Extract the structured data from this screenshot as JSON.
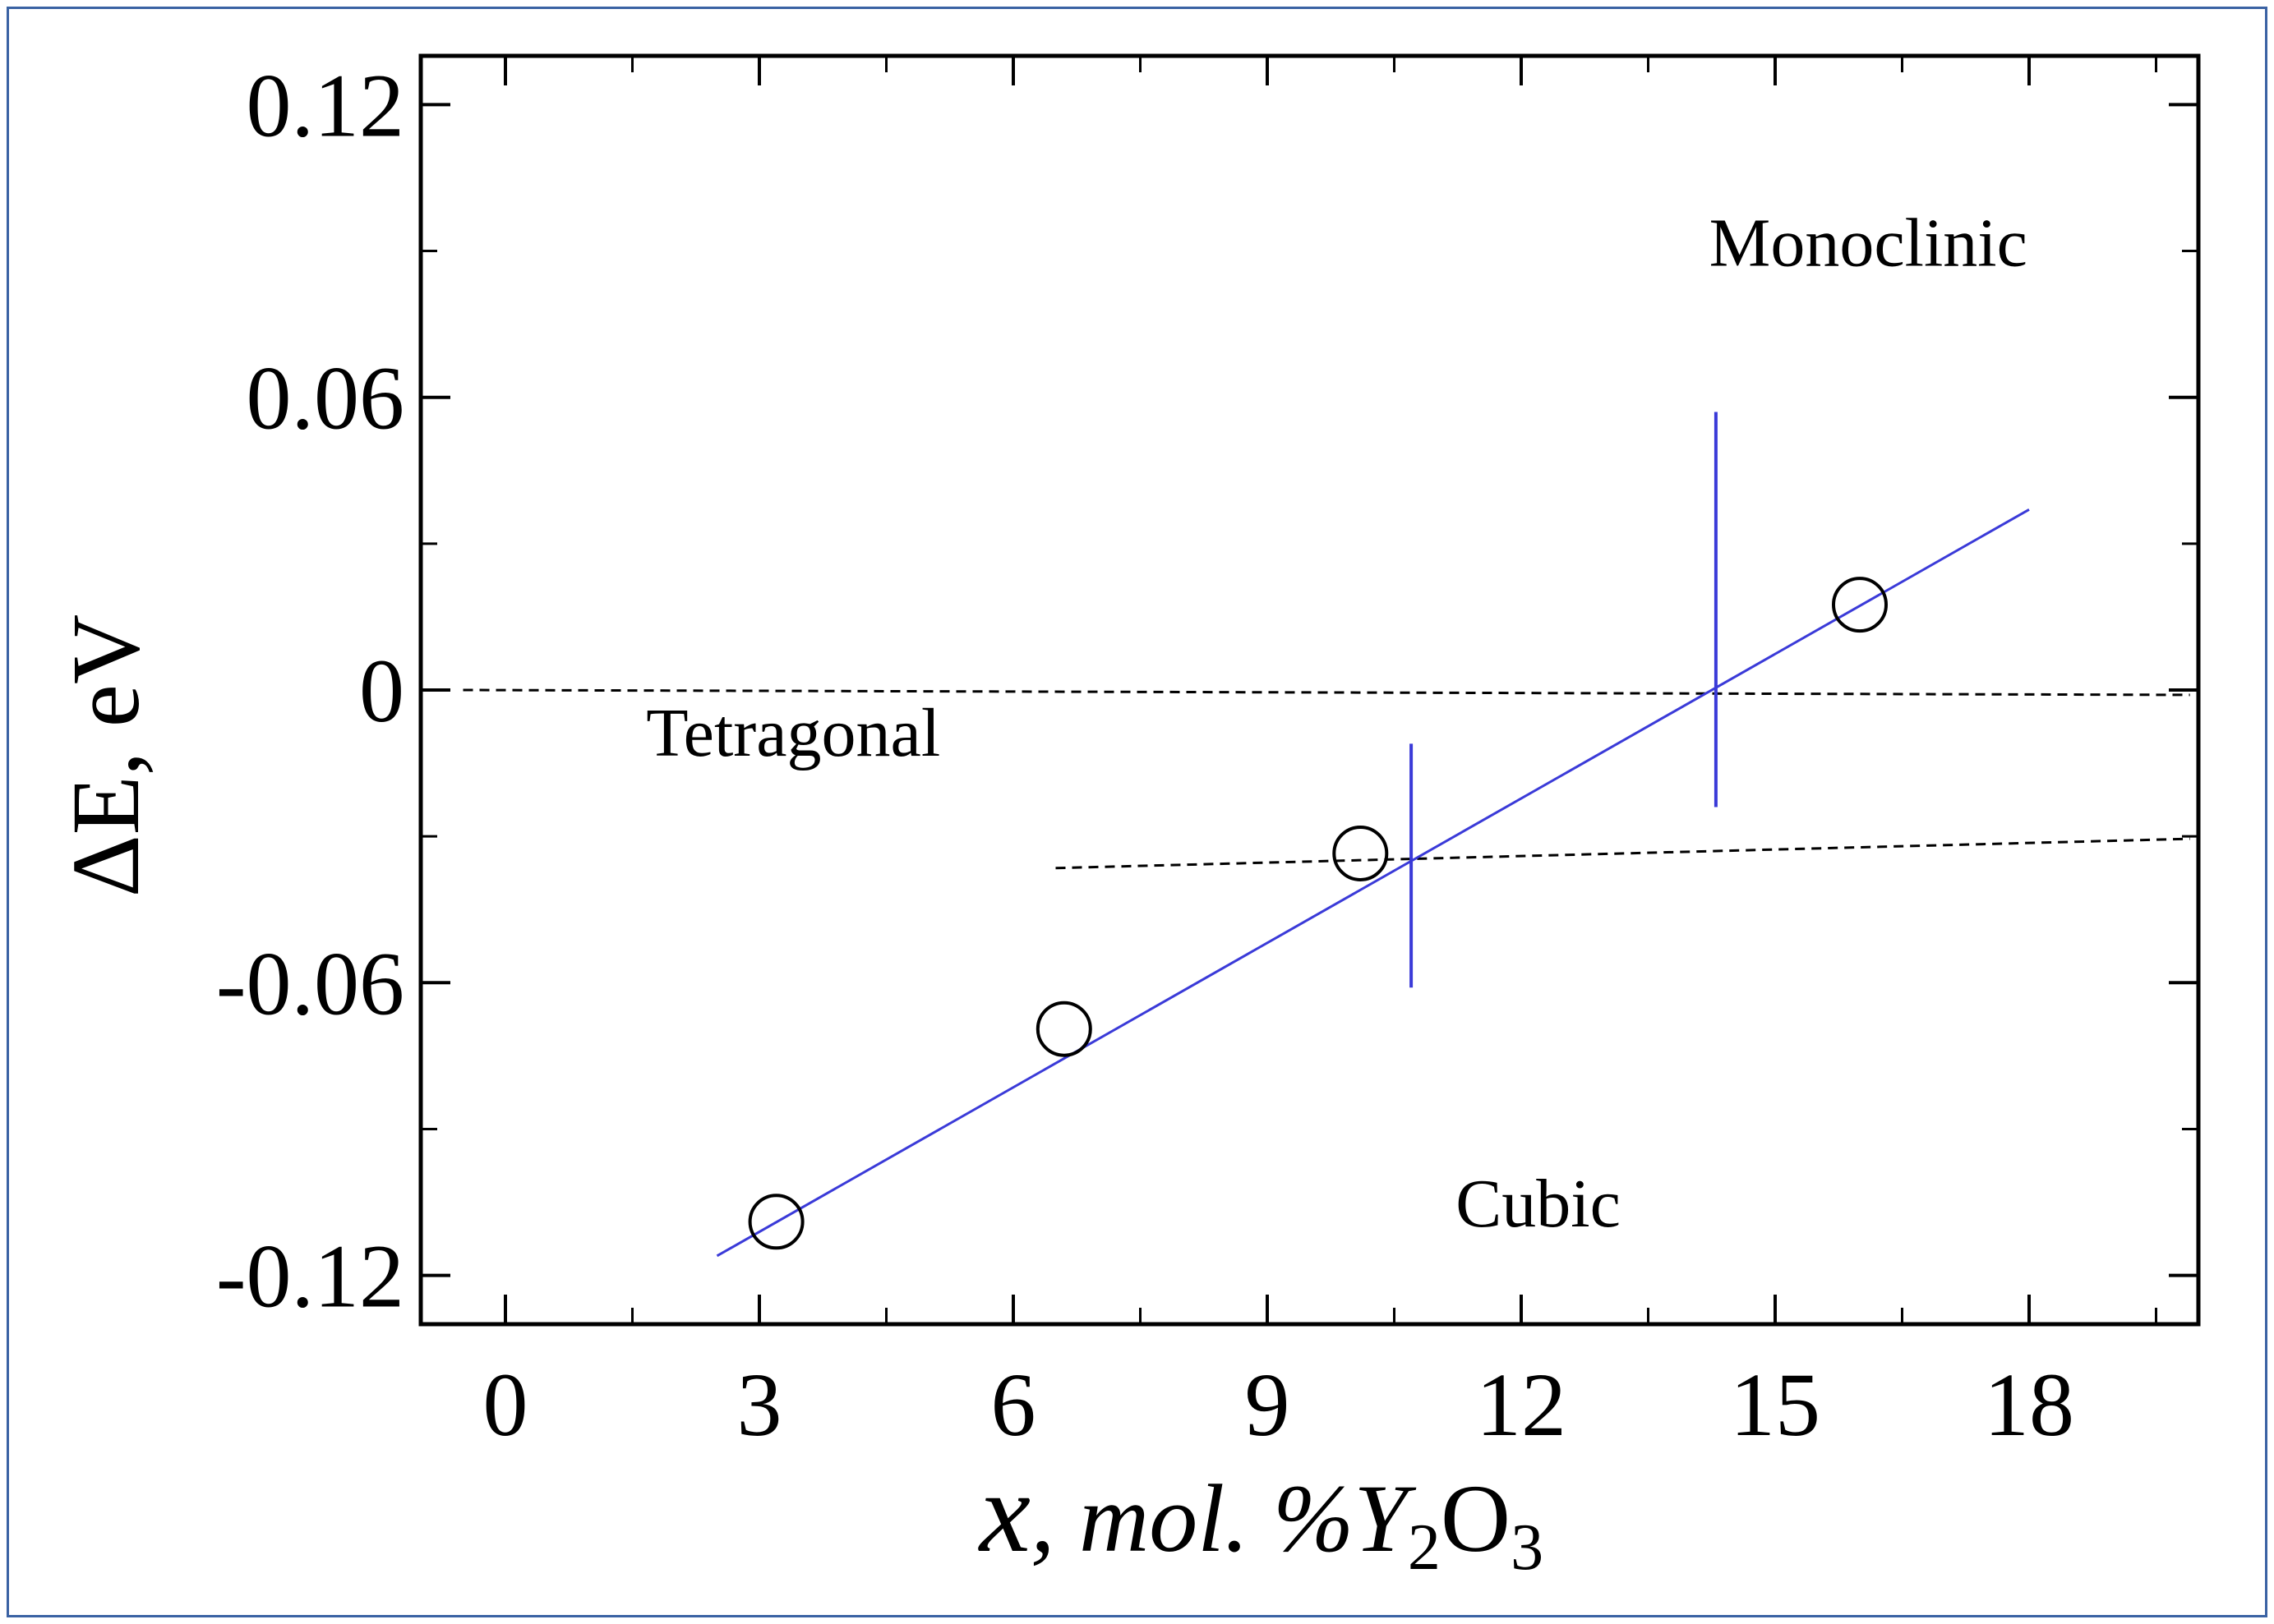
{
  "chart_data": {
    "type": "scatter",
    "title": "",
    "xlabel": {
      "var": "x",
      "rest": ", mol. %Y",
      "sub1": "2",
      "mid": "O",
      "sub2": "3"
    },
    "ylabel": "ΔE, eV",
    "xlim": [
      -1,
      20
    ],
    "ylim": [
      -0.13,
      0.13
    ],
    "xticks": [
      0,
      3,
      6,
      9,
      12,
      15,
      18
    ],
    "xtick_labels": [
      "0",
      "3",
      "6",
      "9",
      "12",
      "15",
      "18"
    ],
    "yticks": [
      -0.12,
      -0.06,
      0,
      0.06,
      0.12
    ],
    "ytick_labels": [
      "-0.12",
      "-0.06",
      "0",
      "0.06",
      "0.12"
    ],
    "grid": false,
    "series": [
      {
        "name": "data points",
        "marker": "open-circle",
        "x": [
          3.2,
          6.6,
          10.1,
          16.0
        ],
        "y": [
          -0.109,
          -0.0695,
          -0.0335,
          0.0175
        ]
      }
    ],
    "fit_line": {
      "x": [
        2.5,
        18.0
      ],
      "y": [
        -0.116,
        0.037
      ],
      "color": "#3a3ad8"
    },
    "reference_lines": [
      {
        "style": "dashed",
        "x": [
          -0.5,
          19.9
        ],
        "y": [
          0.0,
          -0.001
        ]
      },
      {
        "style": "dashed",
        "x": [
          6.5,
          19.9
        ],
        "y": [
          -0.0365,
          -0.0305
        ]
      }
    ],
    "transition_markers": [
      {
        "x": 10.7,
        "y_range": [
          -0.061,
          -0.011
        ]
      },
      {
        "x": 14.3,
        "y_range": [
          -0.024,
          0.057
        ]
      }
    ],
    "region_labels": [
      {
        "text": "Monoclinic",
        "x": 16.1,
        "y": 0.087
      },
      {
        "text": "Tetragonal",
        "x": 3.4,
        "y": -0.0135
      },
      {
        "text": "Cubic",
        "x": 12.2,
        "y": -0.11
      }
    ],
    "colors": {
      "fit": "#3a3ad8",
      "axes": "#000000",
      "frame": "#3a62a3"
    }
  }
}
